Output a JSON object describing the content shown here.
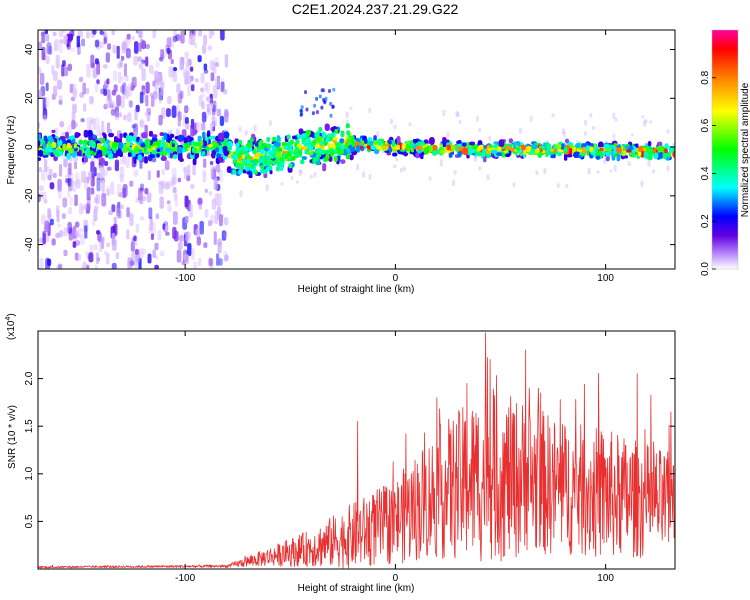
{
  "title": "C2E1.2024.237.21.29.G22",
  "chart_data": [
    {
      "type": "heatmap",
      "xlabel": "Height of straight line (km)",
      "ylabel": "Frequency (Hz)",
      "xlim": [
        -170,
        133
      ],
      "ylim": [
        -50,
        48
      ],
      "x_ticks": [
        "-100",
        "0",
        "100"
      ],
      "y_ticks": [
        "40",
        "20",
        "0",
        "-20",
        "-40"
      ],
      "x_tick_values": [
        -100,
        0,
        100
      ],
      "y_tick_values": [
        40,
        20,
        0,
        -20,
        -40
      ],
      "colorbar": {
        "label": "Normalized spectral amplitude",
        "range": [
          0,
          1
        ],
        "ticks": [
          "0.0",
          "0.2",
          "0.4",
          "0.6",
          "0.8"
        ],
        "tick_values": [
          0.0,
          0.2,
          0.4,
          0.6,
          0.8
        ],
        "colors": [
          "#ffffff",
          "#c8a0ff",
          "#6000e0",
          "#0000ff",
          "#00ffff",
          "#00ff00",
          "#ffff00",
          "#ff8000",
          "#ff0000",
          "#ff00a0"
        ]
      },
      "trace": {
        "x": [
          -170,
          -80,
          -78,
          -60,
          -40,
          -22,
          -20,
          0,
          40,
          80,
          133
        ],
        "center_hz": [
          0,
          0,
          -5,
          -3,
          0,
          2,
          1,
          0,
          -1,
          -1,
          -2
        ]
      }
    },
    {
      "type": "line",
      "xlabel": "Height of straight line (km)",
      "ylabel": "SNR (10 * v/v)",
      "y_scale_label": "(x10",
      "y_scale_exp": "4",
      "xlim": [
        -170,
        133
      ],
      "ylim": [
        0,
        2.5
      ],
      "x_ticks": [
        "-100",
        "0",
        "100"
      ],
      "y_ticks": [
        "0.5",
        "1.0",
        "1.5",
        "2.0"
      ],
      "x_tick_values": [
        -100,
        0,
        100
      ],
      "y_tick_values": [
        0.5,
        1.0,
        1.5,
        2.0
      ],
      "color": "#e83030",
      "envelope": {
        "x": [
          -170,
          -80,
          -60,
          -40,
          -20,
          0,
          20,
          40,
          60,
          80,
          100,
          120,
          133
        ],
        "mean": [
          0.02,
          0.03,
          0.13,
          0.22,
          0.35,
          0.5,
          0.8,
          0.95,
          0.95,
          0.85,
          0.78,
          0.72,
          0.65
        ],
        "spread": [
          0.01,
          0.015,
          0.1,
          0.2,
          0.35,
          0.45,
          0.7,
          0.9,
          0.85,
          0.7,
          0.7,
          0.6,
          0.55
        ]
      },
      "peaks": [
        {
          "x": -18,
          "y": 1.55
        },
        {
          "x": 5,
          "y": 1.42
        },
        {
          "x": 34,
          "y": 1.95
        },
        {
          "x": 43,
          "y": 2.48
        },
        {
          "x": 45,
          "y": 2.2
        },
        {
          "x": 62,
          "y": 2.3
        },
        {
          "x": 68,
          "y": 1.9
        },
        {
          "x": 115,
          "y": 2.05
        },
        {
          "x": 131,
          "y": 1.65
        }
      ]
    }
  ]
}
